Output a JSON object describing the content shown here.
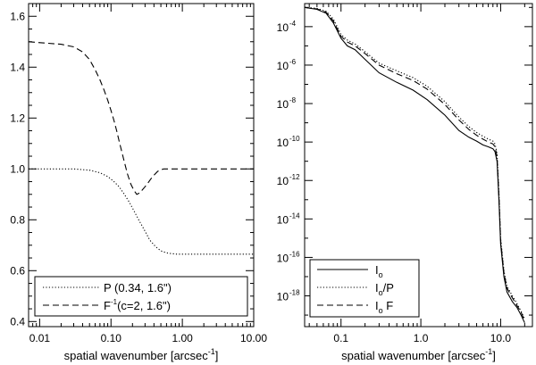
{
  "chart_data": [
    {
      "type": "line",
      "xscale": "log",
      "yscale": "linear",
      "xlim": [
        0.007,
        10.0
      ],
      "ylim": [
        0.38,
        1.65
      ],
      "xticks": [
        {
          "value": 0.01,
          "label": "0.01"
        },
        {
          "value": 0.1,
          "label": "0.10"
        },
        {
          "value": 1.0,
          "label": "1.00"
        },
        {
          "value": 10.0,
          "label": "10.00"
        }
      ],
      "yticks": [
        {
          "value": 0.4,
          "label": "0.4"
        },
        {
          "value": 0.6,
          "label": "0.6"
        },
        {
          "value": 0.8,
          "label": "0.8"
        },
        {
          "value": 1.0,
          "label": "1.0"
        },
        {
          "value": 1.2,
          "label": "1.2"
        },
        {
          "value": 1.4,
          "label": "1.4"
        },
        {
          "value": 1.6,
          "label": "1.6"
        }
      ],
      "xlabel": {
        "text": "spatial wavenumber [arcsec",
        "sup": "-1",
        "close": "]"
      },
      "ylabel": "",
      "legend_position": "bottom",
      "series": [
        {
          "name": "P",
          "style": "dotted",
          "legend": {
            "main": "P (0.34, 1.6\")",
            "sup": ""
          },
          "x": [
            0.007,
            0.03,
            0.05,
            0.07,
            0.09,
            0.11,
            0.13,
            0.15,
            0.18,
            0.21,
            0.25,
            0.3,
            0.35,
            0.42,
            0.5,
            0.6,
            0.7,
            0.85,
            1.0,
            2.0,
            5.0,
            10.0
          ],
          "y": [
            1.0,
            1.0,
            0.995,
            0.985,
            0.97,
            0.95,
            0.93,
            0.905,
            0.87,
            0.835,
            0.795,
            0.755,
            0.72,
            0.695,
            0.678,
            0.67,
            0.667,
            0.665,
            0.665,
            0.665,
            0.665,
            0.665
          ]
        },
        {
          "name": "F^-1",
          "style": "dashed",
          "legend": {
            "main": "F",
            "sup": "-1",
            "tail": "(c=2, 1.6\")"
          },
          "x": [
            0.007,
            0.02,
            0.03,
            0.04,
            0.05,
            0.06,
            0.07,
            0.08,
            0.09,
            0.1,
            0.11,
            0.12,
            0.13,
            0.15,
            0.17,
            0.19,
            0.21,
            0.23,
            0.25,
            0.27,
            0.3,
            0.33,
            0.36,
            0.4,
            0.45,
            0.5,
            0.55,
            0.6,
            0.7,
            1.0,
            2.0,
            10.0
          ],
          "y": [
            1.5,
            1.49,
            1.48,
            1.46,
            1.43,
            1.39,
            1.35,
            1.31,
            1.27,
            1.23,
            1.19,
            1.15,
            1.11,
            1.04,
            0.98,
            0.94,
            0.915,
            0.9,
            0.905,
            0.915,
            0.93,
            0.945,
            0.96,
            0.975,
            0.99,
            0.997,
            1.0,
            1.0,
            1.0,
            1.0,
            1.0,
            1.0
          ]
        }
      ]
    },
    {
      "type": "line",
      "xscale": "log",
      "yscale": "log",
      "xlim": [
        0.035,
        25.0
      ],
      "ylim_exponent": [
        -19.6,
        -2.8
      ],
      "xticks": [
        {
          "value": 0.1,
          "label": "0.1"
        },
        {
          "value": 1.0,
          "label": "1.0"
        },
        {
          "value": 10.0,
          "label": "10.0"
        }
      ],
      "yticks": [
        {
          "exponent": -4,
          "base": "10",
          "label": "-4"
        },
        {
          "exponent": -6,
          "base": "10",
          "label": "-6"
        },
        {
          "exponent": -8,
          "base": "10",
          "label": "-8"
        },
        {
          "exponent": -10,
          "base": "10",
          "label": "-10"
        },
        {
          "exponent": -12,
          "base": "10",
          "label": "-12"
        },
        {
          "exponent": -14,
          "base": "10",
          "label": "-14"
        },
        {
          "exponent": -16,
          "base": "10",
          "label": "-16"
        },
        {
          "exponent": -18,
          "base": "10",
          "label": "-18"
        }
      ],
      "xlabel": {
        "text": "spatial wavenumber [arcsec",
        "sup": "-1",
        "close": "]"
      },
      "ylabel": "",
      "legend_position": "bottom-left",
      "series": [
        {
          "name": "Io",
          "style": "solid",
          "legend": {
            "main": "I",
            "sub": "o",
            "tail": ""
          },
          "x": [
            0.035,
            0.05,
            0.065,
            0.08,
            0.1,
            0.12,
            0.15,
            0.2,
            0.3,
            0.5,
            0.8,
            1.2,
            2.0,
            3.0,
            4.0,
            5.0,
            6.0,
            7.0,
            8.0,
            8.5,
            9.0,
            9.5,
            10.0,
            11.0,
            12.0,
            14.0,
            16.0,
            18.0,
            20.0
          ],
          "y_exponent": [
            -3.0,
            -3.1,
            -3.3,
            -3.8,
            -4.6,
            -5.0,
            -5.2,
            -5.7,
            -6.4,
            -6.9,
            -7.3,
            -7.8,
            -8.6,
            -9.4,
            -9.75,
            -9.95,
            -10.15,
            -10.25,
            -10.35,
            -10.5,
            -11.0,
            -13.0,
            -15.3,
            -17.0,
            -17.8,
            -18.3,
            -18.6,
            -19.0,
            -19.4
          ]
        },
        {
          "name": "Io/P",
          "style": "dotted",
          "legend": {
            "main": "I",
            "sub": "o",
            "tail": "/P"
          },
          "x": [
            0.035,
            0.05,
            0.065,
            0.08,
            0.1,
            0.12,
            0.15,
            0.2,
            0.3,
            0.5,
            0.8,
            1.2,
            2.0,
            3.0,
            4.0,
            5.0,
            6.0,
            7.0,
            8.0,
            8.5,
            9.0,
            9.5,
            10.0,
            11.0,
            12.0,
            14.0,
            16.0,
            18.0,
            20.0
          ],
          "y_exponent": [
            -3.0,
            -3.05,
            -3.2,
            -3.6,
            -4.4,
            -4.7,
            -4.9,
            -5.3,
            -5.9,
            -6.3,
            -6.65,
            -7.1,
            -7.9,
            -8.7,
            -9.2,
            -9.5,
            -9.7,
            -9.85,
            -9.95,
            -10.1,
            -10.6,
            -12.6,
            -15.0,
            -16.7,
            -17.5,
            -18.0,
            -18.4,
            -18.8,
            -19.2
          ]
        },
        {
          "name": "Io F",
          "style": "dashed",
          "legend": {
            "main": "I",
            "sub": "o",
            "tail": " F"
          },
          "x": [
            0.035,
            0.05,
            0.065,
            0.08,
            0.1,
            0.12,
            0.15,
            0.2,
            0.3,
            0.5,
            0.8,
            1.2,
            2.0,
            3.0,
            4.0,
            5.0,
            6.0,
            7.0,
            8.0,
            8.5,
            9.0,
            9.5,
            10.0,
            11.0,
            12.0,
            14.0,
            16.0,
            18.0,
            20.0
          ],
          "y_exponent": [
            -3.0,
            -3.08,
            -3.25,
            -3.7,
            -4.5,
            -4.8,
            -5.0,
            -5.4,
            -6.0,
            -6.45,
            -6.8,
            -7.25,
            -8.05,
            -8.85,
            -9.35,
            -9.65,
            -9.85,
            -10.0,
            -10.1,
            -10.25,
            -10.75,
            -12.8,
            -15.1,
            -16.8,
            -17.6,
            -18.1,
            -18.5,
            -18.85,
            -19.3
          ]
        }
      ]
    }
  ]
}
